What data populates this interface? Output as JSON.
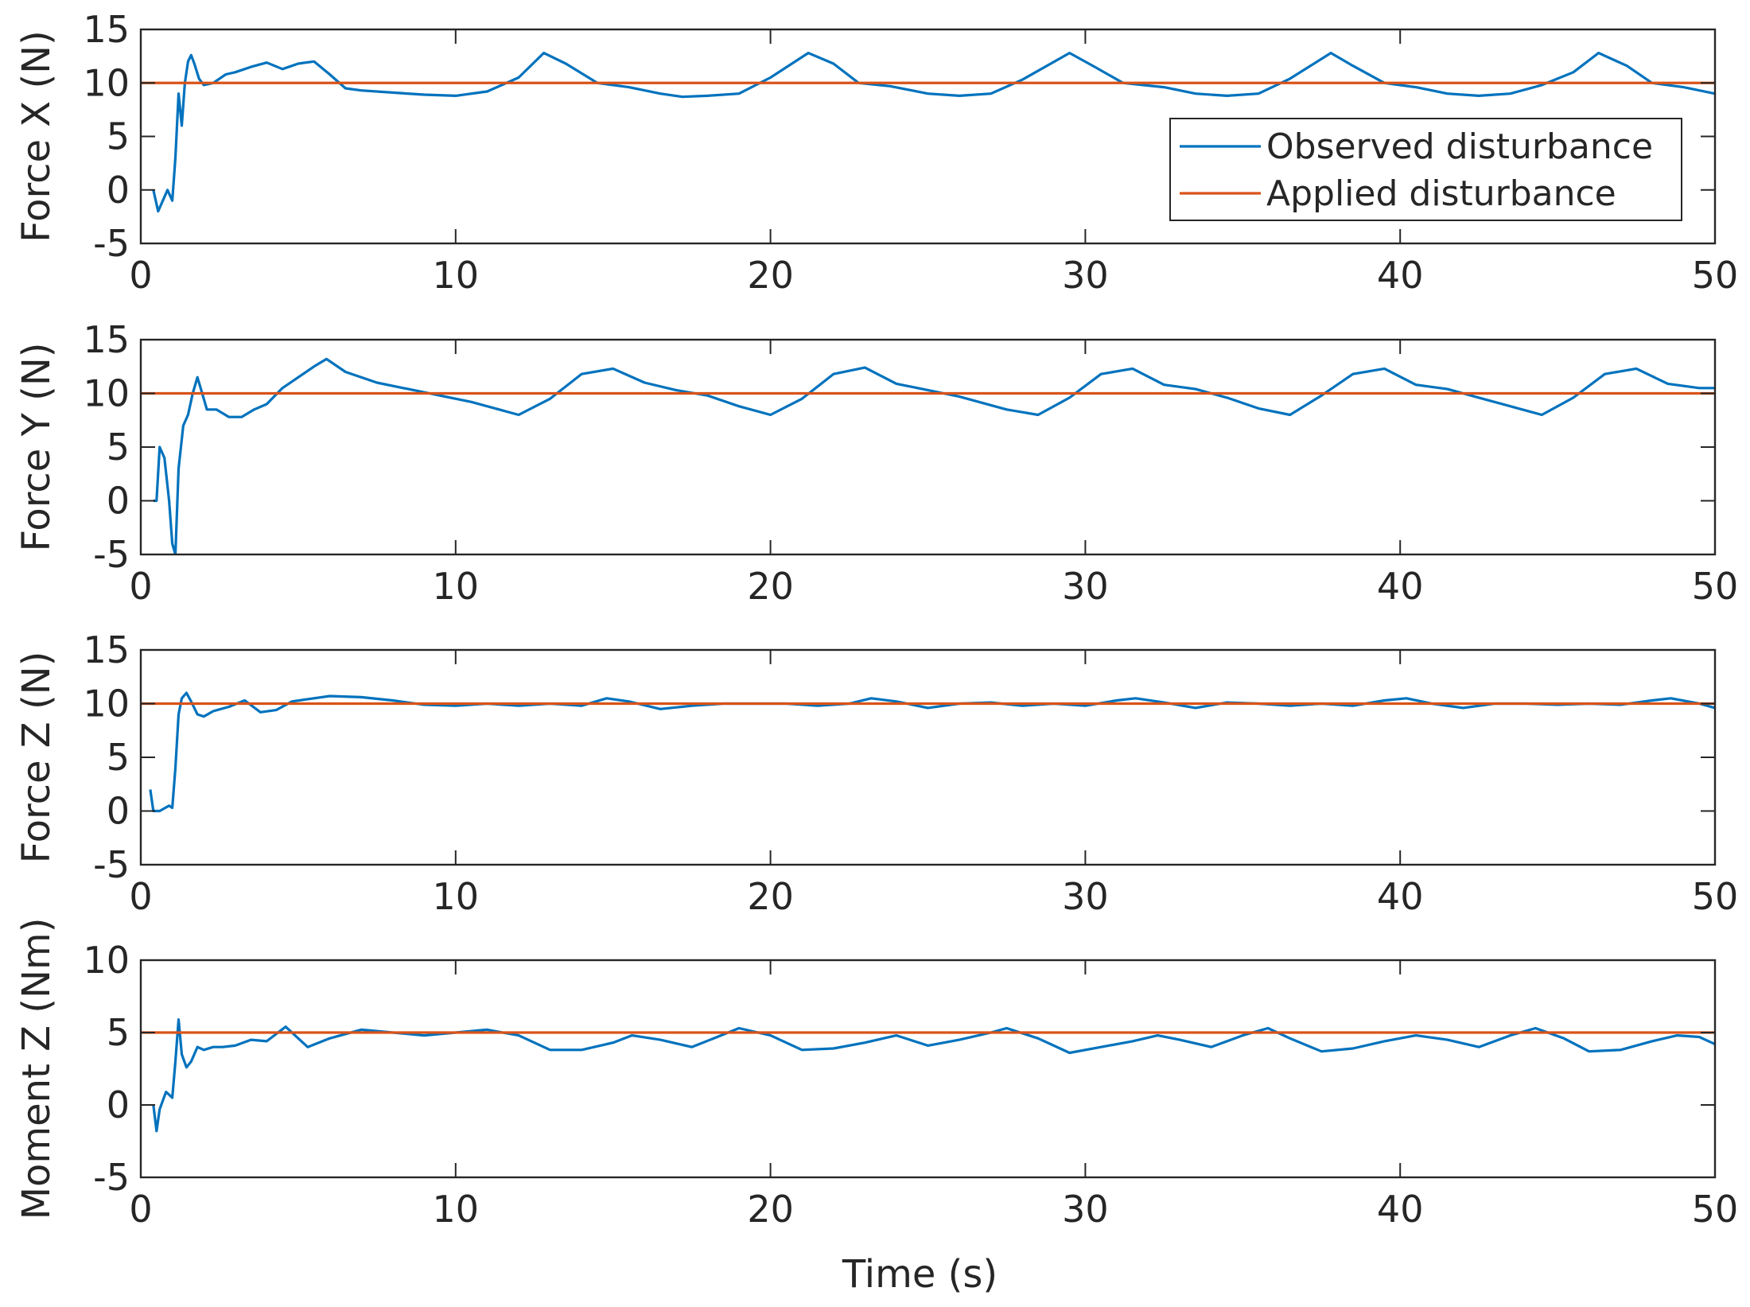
{
  "colors": {
    "observed": "#0072BD",
    "applied": "#D95319",
    "axes": "#262626",
    "background": "#ffffff"
  },
  "chart_data": [
    {
      "type": "line",
      "ylabel": "Force X (N)",
      "xlabel": "",
      "xlim": [
        0,
        50
      ],
      "ylim": [
        -5,
        15
      ],
      "xticks": [
        "0",
        "10",
        "20",
        "30",
        "40",
        "50"
      ],
      "yticks": [
        "-5",
        "0",
        "5",
        "10",
        "15"
      ],
      "legend": {
        "location": "inside right",
        "entries": [
          "Observed disturbance",
          "Applied disturbance"
        ]
      },
      "series": [
        {
          "name": "Observed disturbance",
          "x": [
            0.4,
            0.55,
            0.7,
            0.85,
            1.0,
            1.1,
            1.2,
            1.3,
            1.4,
            1.5,
            1.6,
            1.7,
            1.85,
            2.0,
            2.3,
            2.7,
            3.0,
            3.5,
            4.0,
            4.5,
            5.0,
            5.5,
            6.0,
            6.5,
            7.0,
            8.0,
            9.0,
            10.0,
            11.0,
            12.0,
            12.8,
            13.5,
            14.5,
            15.5,
            16.5,
            17.2,
            18.0,
            19.0,
            20.0,
            21.2,
            22.0,
            22.8,
            23.8,
            25.0,
            26.0,
            27.0,
            28.0,
            29.5,
            30.3,
            31.2,
            32.5,
            33.5,
            34.5,
            35.5,
            36.5,
            37.8,
            38.5,
            39.5,
            40.5,
            41.5,
            42.5,
            43.5,
            44.5,
            45.5,
            46.3,
            47.2,
            48.0,
            49.0,
            50.0
          ],
          "y": [
            0,
            -2,
            -1,
            0,
            -1,
            3,
            9,
            6,
            10,
            12,
            12.6,
            11.8,
            10.4,
            9.8,
            10.0,
            10.8,
            11.0,
            11.5,
            11.9,
            11.3,
            11.8,
            12.0,
            10.8,
            9.5,
            9.3,
            9.1,
            8.9,
            8.8,
            9.2,
            10.5,
            12.8,
            11.8,
            10.0,
            9.6,
            9.0,
            8.7,
            8.8,
            9.0,
            10.5,
            12.8,
            11.8,
            10.0,
            9.7,
            9.0,
            8.8,
            9.0,
            10.3,
            12.8,
            11.5,
            10.0,
            9.6,
            9.0,
            8.8,
            9.0,
            10.4,
            12.8,
            11.6,
            10.0,
            9.6,
            9.0,
            8.8,
            9.0,
            9.8,
            11.0,
            12.8,
            11.6,
            10.0,
            9.6,
            9.0
          ]
        },
        {
          "name": "Applied disturbance",
          "x": [
            0,
            50
          ],
          "y": [
            10,
            10
          ]
        }
      ]
    },
    {
      "type": "line",
      "ylabel": "Force Y (N)",
      "xlabel": "",
      "xlim": [
        0,
        50
      ],
      "ylim": [
        -5,
        15
      ],
      "xticks": [
        "0",
        "10",
        "20",
        "30",
        "40",
        "50"
      ],
      "yticks": [
        "-5",
        "0",
        "5",
        "10",
        "15"
      ],
      "series": [
        {
          "name": "Observed disturbance",
          "x": [
            0.4,
            0.5,
            0.6,
            0.75,
            0.9,
            1.0,
            1.1,
            1.2,
            1.35,
            1.5,
            1.65,
            1.8,
            1.95,
            2.1,
            2.4,
            2.8,
            3.2,
            3.6,
            4.0,
            4.5,
            5.0,
            5.5,
            5.9,
            6.5,
            7.5,
            8.5,
            9.5,
            10.5,
            11.5,
            12.0,
            13.0,
            14.0,
            15.0,
            16.0,
            17.0,
            18.0,
            19.0,
            20.0,
            21.0,
            22.0,
            23.0,
            24.0,
            25.0,
            26.0,
            27.5,
            28.5,
            29.5,
            30.5,
            31.5,
            32.5,
            33.5,
            34.5,
            35.5,
            36.5,
            37.5,
            38.5,
            39.5,
            40.5,
            41.5,
            42.5,
            43.5,
            44.5,
            45.5,
            46.5,
            47.5,
            48.5,
            49.5,
            50.0
          ],
          "y": [
            0,
            0,
            5,
            4,
            0,
            -4,
            -5,
            3,
            7,
            8,
            10,
            11.5,
            10,
            8.5,
            8.5,
            7.8,
            7.8,
            8.5,
            9,
            10.5,
            11.5,
            12.5,
            13.2,
            12.0,
            11.0,
            10.4,
            9.8,
            9.2,
            8.4,
            8.0,
            9.5,
            11.8,
            12.3,
            11.0,
            10.3,
            9.8,
            8.8,
            8.0,
            9.5,
            11.8,
            12.4,
            10.9,
            10.3,
            9.7,
            8.5,
            8.0,
            9.6,
            11.8,
            12.3,
            10.8,
            10.4,
            9.6,
            8.6,
            8.0,
            9.8,
            11.8,
            12.3,
            10.8,
            10.4,
            9.6,
            8.8,
            8.0,
            9.6,
            11.8,
            12.3,
            10.9,
            10.5,
            10.5
          ]
        },
        {
          "name": "Applied disturbance",
          "x": [
            0,
            50
          ],
          "y": [
            10,
            10
          ]
        }
      ]
    },
    {
      "type": "line",
      "ylabel": "Force Z (N)",
      "xlabel": "",
      "xlim": [
        0,
        50
      ],
      "ylim": [
        -5,
        15
      ],
      "xticks": [
        "0",
        "10",
        "20",
        "30",
        "40",
        "50"
      ],
      "yticks": [
        "-5",
        "0",
        "5",
        "10",
        "15"
      ],
      "series": [
        {
          "name": "Observed disturbance",
          "x": [
            0.3,
            0.4,
            0.6,
            0.9,
            1.0,
            1.1,
            1.2,
            1.3,
            1.45,
            1.6,
            1.8,
            2.0,
            2.3,
            2.8,
            3.3,
            3.8,
            4.3,
            4.8,
            5.5,
            6.0,
            7.0,
            8.0,
            9.0,
            10.0,
            11.0,
            12.0,
            13.0,
            14.0,
            14.8,
            15.5,
            16.5,
            17.5,
            18.5,
            19.5,
            20.5,
            21.5,
            22.5,
            23.2,
            24.0,
            25.0,
            26.0,
            27.0,
            28.0,
            29.0,
            30.0,
            31.0,
            31.6,
            32.5,
            33.5,
            34.5,
            35.5,
            36.5,
            37.5,
            38.5,
            39.5,
            40.2,
            41.0,
            42.0,
            43.0,
            44.0,
            45.0,
            46.0,
            47.0,
            48.0,
            48.6,
            49.5,
            50.0
          ],
          "y": [
            2,
            0,
            0,
            0.5,
            0.3,
            4,
            9,
            10.5,
            11.0,
            10.2,
            9.0,
            8.8,
            9.3,
            9.7,
            10.3,
            9.2,
            9.4,
            10.2,
            10.5,
            10.7,
            10.6,
            10.3,
            9.9,
            9.8,
            10.0,
            9.8,
            10.0,
            9.8,
            10.5,
            10.2,
            9.5,
            9.8,
            10.0,
            10.0,
            10.0,
            9.8,
            10.0,
            10.5,
            10.2,
            9.6,
            10.0,
            10.1,
            9.8,
            10.0,
            9.8,
            10.3,
            10.5,
            10.1,
            9.6,
            10.1,
            10.0,
            9.8,
            10.0,
            9.8,
            10.3,
            10.5,
            10.0,
            9.6,
            10.0,
            10.0,
            9.9,
            10.0,
            9.9,
            10.3,
            10.5,
            10.0,
            9.6
          ]
        },
        {
          "name": "Applied disturbance",
          "x": [
            0,
            50
          ],
          "y": [
            10,
            10
          ]
        }
      ]
    },
    {
      "type": "line",
      "ylabel": "Moment Z (Nm)",
      "xlabel": "Time (s)",
      "xlim": [
        0,
        50
      ],
      "ylim": [
        -5,
        10
      ],
      "xticks": [
        "0",
        "10",
        "20",
        "30",
        "40",
        "50"
      ],
      "yticks": [
        "-5",
        "0",
        "5",
        "10"
      ],
      "series": [
        {
          "name": "Observed disturbance",
          "x": [
            0.4,
            0.5,
            0.6,
            0.8,
            1.0,
            1.1,
            1.2,
            1.3,
            1.45,
            1.6,
            1.8,
            2.0,
            2.3,
            2.6,
            3.0,
            3.5,
            4.0,
            4.6,
            5.3,
            6.0,
            7.0,
            8.0,
            9.0,
            10.0,
            11.0,
            12.0,
            13.0,
            14.0,
            15.0,
            15.6,
            16.5,
            17.5,
            18.2,
            19.0,
            20.0,
            21.0,
            22.0,
            23.0,
            24.0,
            25.0,
            26.0,
            27.0,
            27.5,
            28.5,
            29.5,
            30.5,
            31.5,
            32.3,
            33.0,
            34.0,
            35.0,
            35.8,
            36.5,
            37.5,
            38.5,
            39.5,
            40.5,
            41.5,
            42.5,
            43.5,
            44.3,
            45.2,
            46.0,
            47.0,
            48.0,
            48.8,
            49.5,
            50.0
          ],
          "y": [
            0,
            -1.8,
            -0.3,
            0.9,
            0.5,
            3,
            5.9,
            3.5,
            2.6,
            3.0,
            4.0,
            3.8,
            4.0,
            4.0,
            4.1,
            4.5,
            4.4,
            5.4,
            4.0,
            4.6,
            5.2,
            5.0,
            4.8,
            5.0,
            5.2,
            4.8,
            3.8,
            3.8,
            4.3,
            4.8,
            4.5,
            4.0,
            4.6,
            5.3,
            4.8,
            3.8,
            3.9,
            4.3,
            4.8,
            4.1,
            4.5,
            5.0,
            5.3,
            4.6,
            3.6,
            4.0,
            4.4,
            4.8,
            4.5,
            4.0,
            4.8,
            5.3,
            4.6,
            3.7,
            3.9,
            4.4,
            4.8,
            4.5,
            4.0,
            4.8,
            5.3,
            4.6,
            3.7,
            3.8,
            4.4,
            4.8,
            4.7,
            4.2
          ]
        },
        {
          "name": "Applied disturbance",
          "x": [
            0,
            50
          ],
          "y": [
            5,
            5
          ]
        }
      ]
    }
  ]
}
